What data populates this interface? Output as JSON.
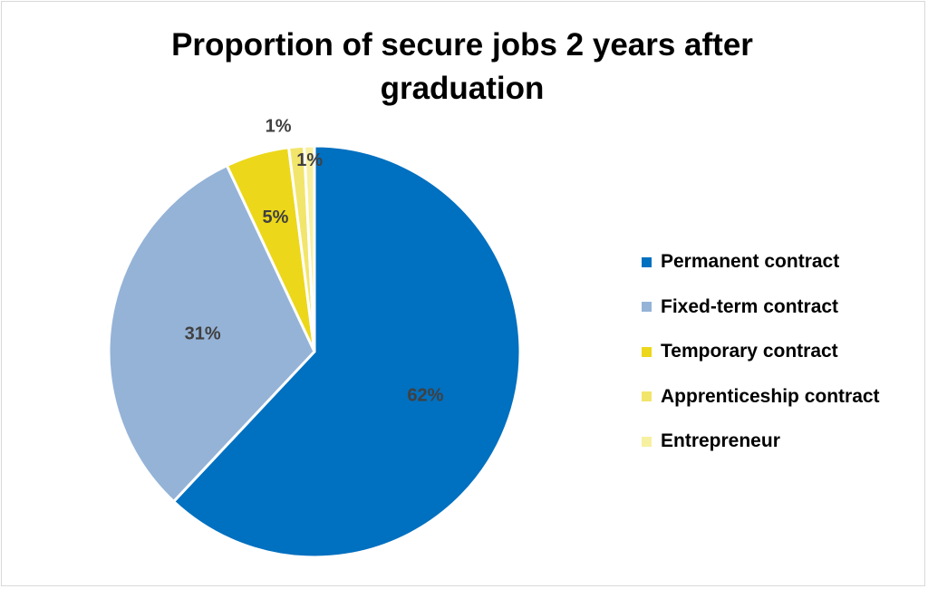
{
  "chart_data": {
    "type": "pie",
    "title": "Proportion of secure jobs 2 years after graduation",
    "slices": [
      {
        "label": "Permanent contract",
        "value": 62,
        "display": "62%",
        "color": "#0070c0"
      },
      {
        "label": "Fixed-term contract",
        "value": 31,
        "display": "31%",
        "color": "#95b3d7"
      },
      {
        "label": "Temporary contract",
        "value": 5,
        "display": "5%",
        "color": "#ecd71a"
      },
      {
        "label": "Apprenticeship contract",
        "value": 1.2,
        "display": "1%",
        "color": "#f2e56b"
      },
      {
        "label": "Entrepreneur",
        "value": 0.8,
        "display": "1%",
        "color": "#f7f0a0"
      }
    ],
    "legend_position": "right"
  }
}
